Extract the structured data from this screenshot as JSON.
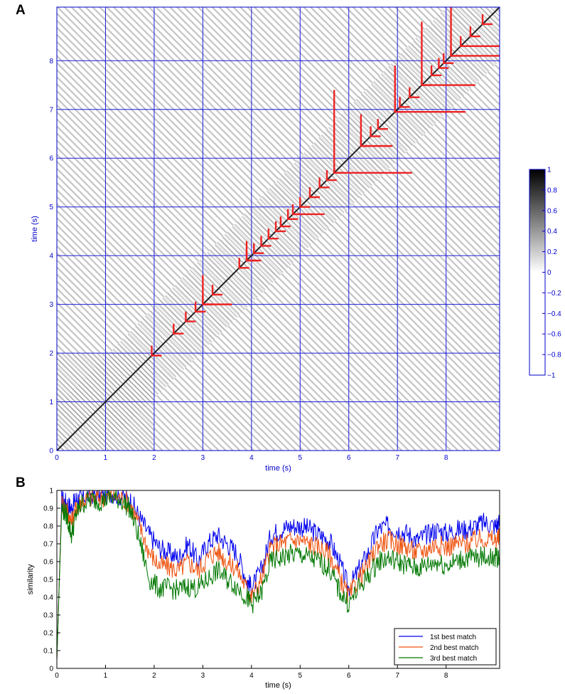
{
  "panels": {
    "a_label": "A",
    "b_label": "B"
  },
  "colors": {
    "axisA": "#0000cc",
    "gridA": "#1a1adb",
    "marker": "#ee2222",
    "axisB": "#000000"
  },
  "chart_data": [
    {
      "type": "heatmap",
      "xlabel": "time (s)",
      "ylabel": "time (s)",
      "xlim": [
        0,
        9.1
      ],
      "ylim": [
        0,
        9.1
      ],
      "xticks": [
        0,
        1,
        2,
        3,
        4,
        5,
        6,
        7,
        8
      ],
      "yticks": [
        0,
        1,
        2,
        3,
        4,
        5,
        6,
        7,
        8
      ],
      "grid": true,
      "colormap": "gray-reversed",
      "colorbar": {
        "ticks": [
          "1",
          "0.8",
          "0.6",
          "0.4",
          "0.2",
          "0",
          "−0.2",
          "−0.4",
          "−0.6",
          "−0.8",
          "−1"
        ],
        "range": [
          -1,
          1
        ]
      },
      "markers": {
        "diagonal_points": [
          1.95,
          2.4,
          2.65,
          2.85,
          3.0,
          3.2,
          3.75,
          3.9,
          4.05,
          4.2,
          4.35,
          4.5,
          4.6,
          4.75,
          4.85,
          5.0,
          5.2,
          5.4,
          5.55,
          5.7,
          6.25,
          6.45,
          6.6,
          6.95,
          7.05,
          7.25,
          7.5,
          7.7,
          7.85,
          7.95,
          8.1,
          8.3,
          8.5,
          8.75
        ],
        "long_horizontal": [
          [
            3.0,
            3.6
          ],
          [
            3.9,
            4.2
          ],
          [
            4.85,
            5.5
          ],
          [
            5.7,
            7.3
          ],
          [
            6.25,
            6.9
          ],
          [
            6.95,
            8.4
          ],
          [
            7.5,
            8.6
          ],
          [
            8.1,
            9.1
          ],
          [
            8.3,
            9.1
          ]
        ],
        "long_vertical": [
          [
            3.0,
            3.6
          ],
          [
            3.9,
            4.3
          ],
          [
            5.7,
            7.4
          ],
          [
            6.25,
            6.9
          ],
          [
            6.95,
            7.9
          ],
          [
            7.5,
            8.8
          ],
          [
            8.1,
            9.1
          ]
        ]
      }
    },
    {
      "type": "line",
      "xlabel": "time (s)",
      "ylabel": "similarity",
      "xlim": [
        0,
        9.1
      ],
      "ylim": [
        0,
        1
      ],
      "xticks": [
        0,
        1,
        2,
        3,
        4,
        5,
        6,
        7,
        8
      ],
      "yticks": [
        0,
        0.1,
        0.2,
        0.3,
        0.4,
        0.5,
        0.6,
        0.7,
        0.8,
        0.9,
        1
      ],
      "grid": false,
      "legend_position": "bottom-right",
      "x": [
        0,
        0.1,
        0.2,
        0.3,
        0.4,
        0.5,
        0.7,
        0.9,
        1.1,
        1.3,
        1.5,
        1.7,
        1.9,
        2.1,
        2.3,
        2.5,
        2.7,
        2.9,
        3.1,
        3.3,
        3.5,
        3.7,
        3.9,
        4.0,
        4.2,
        4.4,
        4.6,
        4.8,
        5.0,
        5.2,
        5.4,
        5.6,
        5.8,
        6.0,
        6.2,
        6.4,
        6.6,
        6.8,
        7.0,
        7.2,
        7.4,
        7.6,
        7.8,
        8.0,
        8.2,
        8.4,
        8.6,
        8.8,
        9.0,
        9.1
      ],
      "series": [
        {
          "name": "1st best match",
          "color": "#0000ee",
          "values": [
            0.05,
            0.95,
            0.93,
            0.9,
            0.95,
            0.96,
            0.98,
            0.97,
            0.99,
            0.97,
            0.95,
            0.85,
            0.75,
            0.68,
            0.65,
            0.62,
            0.7,
            0.6,
            0.7,
            0.75,
            0.7,
            0.65,
            0.5,
            0.45,
            0.55,
            0.75,
            0.78,
            0.8,
            0.8,
            0.78,
            0.75,
            0.72,
            0.6,
            0.45,
            0.55,
            0.65,
            0.78,
            0.8,
            0.78,
            0.76,
            0.72,
            0.75,
            0.78,
            0.76,
            0.78,
            0.78,
            0.8,
            0.82,
            0.8,
            0.82
          ]
        },
        {
          "name": "2nd best match",
          "color": "#ee5511",
          "values": [
            0.05,
            0.93,
            0.9,
            0.82,
            0.9,
            0.94,
            0.96,
            0.96,
            0.97,
            0.96,
            0.93,
            0.8,
            0.65,
            0.58,
            0.57,
            0.55,
            0.6,
            0.55,
            0.62,
            0.66,
            0.6,
            0.56,
            0.45,
            0.4,
            0.5,
            0.68,
            0.7,
            0.72,
            0.72,
            0.7,
            0.68,
            0.64,
            0.52,
            0.4,
            0.5,
            0.58,
            0.7,
            0.72,
            0.7,
            0.68,
            0.65,
            0.67,
            0.7,
            0.68,
            0.7,
            0.7,
            0.72,
            0.73,
            0.72,
            0.73
          ]
        },
        {
          "name": "3rd best match",
          "color": "#007700",
          "values": [
            0.05,
            0.9,
            0.86,
            0.75,
            0.87,
            0.92,
            0.95,
            0.94,
            0.96,
            0.95,
            0.9,
            0.72,
            0.5,
            0.45,
            0.45,
            0.44,
            0.46,
            0.45,
            0.5,
            0.55,
            0.5,
            0.46,
            0.4,
            0.36,
            0.42,
            0.6,
            0.62,
            0.64,
            0.64,
            0.62,
            0.6,
            0.56,
            0.44,
            0.36,
            0.45,
            0.52,
            0.6,
            0.62,
            0.6,
            0.58,
            0.56,
            0.58,
            0.6,
            0.58,
            0.6,
            0.62,
            0.62,
            0.63,
            0.62,
            0.63
          ]
        }
      ]
    }
  ]
}
